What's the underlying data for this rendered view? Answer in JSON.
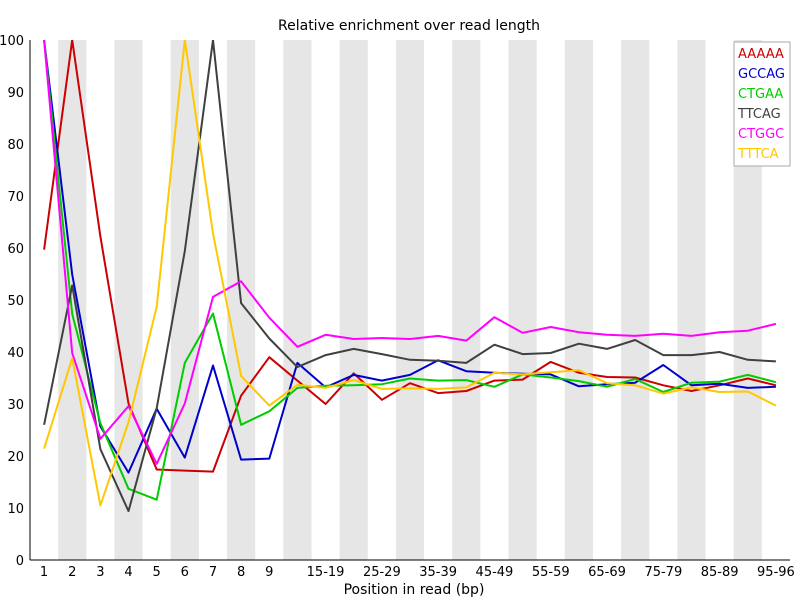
{
  "chart_data": {
    "type": "line",
    "title": "Relative enrichment over read length",
    "xlabel": "Position in read (bp)",
    "ylabel": "",
    "ylim": [
      0,
      100
    ],
    "yticks": [
      0,
      10,
      20,
      30,
      40,
      50,
      60,
      70,
      80,
      90,
      100
    ],
    "grid": "alternating vertical bands",
    "legend_position": "top-right",
    "categories": [
      "1",
      "2",
      "3",
      "4",
      "5",
      "6",
      "7",
      "8",
      "9",
      "10-14",
      "15-19",
      "20-24",
      "25-29",
      "30-34",
      "35-39",
      "40-44",
      "45-49",
      "50-54",
      "55-59",
      "60-64",
      "65-69",
      "70-74",
      "75-79",
      "80-84",
      "85-89",
      "90-94",
      "95-96"
    ],
    "tick_labels": [
      "1",
      "2",
      "3",
      "4",
      "5",
      "6",
      "7",
      "8",
      "9",
      "",
      "15-19",
      "",
      "25-29",
      "",
      "35-39",
      "",
      "45-49",
      "",
      "55-59",
      "",
      "65-69",
      "",
      "75-79",
      "",
      "85-89",
      "",
      "95-96"
    ],
    "series": [
      {
        "name": "AAAAA",
        "color": "#cc0000",
        "values": [
          59.7,
          100,
          62.2,
          30.1,
          17.4,
          17.2,
          17.0,
          31.6,
          39.0,
          34.5,
          30.0,
          35.9,
          30.8,
          34.0,
          32.1,
          32.5,
          34.5,
          34.7,
          38.1,
          36.0,
          35.2,
          35.1,
          33.6,
          32.5,
          33.6,
          34.9,
          33.6
        ]
      },
      {
        "name": "GCCAG",
        "color": "#0000cc",
        "values": [
          100,
          54.9,
          25.7,
          16.8,
          29.1,
          19.7,
          37.4,
          19.3,
          19.5,
          37.9,
          33.2,
          35.6,
          34.5,
          35.6,
          38.4,
          36.3,
          36.0,
          35.8,
          35.7,
          33.4,
          33.8,
          34.1,
          37.5,
          33.6,
          33.9,
          33.1,
          33.3
        ]
      },
      {
        "name": "CTGAA",
        "color": "#00cc00",
        "values": [
          100,
          47.3,
          26.3,
          13.7,
          11.6,
          37.9,
          47.4,
          26.0,
          28.6,
          33.1,
          33.5,
          33.6,
          33.8,
          34.9,
          34.5,
          34.6,
          33.3,
          35.7,
          35.1,
          34.4,
          33.3,
          34.8,
          32.3,
          34.1,
          34.3,
          35.6,
          34.2
        ]
      },
      {
        "name": "TTCAG",
        "color": "#404040",
        "values": [
          26.0,
          52.8,
          21.3,
          9.4,
          29.2,
          59.4,
          100,
          49.4,
          42.6,
          37.1,
          39.4,
          40.6,
          39.6,
          38.5,
          38.3,
          37.9,
          41.4,
          39.6,
          39.8,
          41.6,
          40.6,
          42.3,
          39.4,
          39.4,
          40.0,
          38.5,
          38.2
        ]
      },
      {
        "name": "CTGGC",
        "color": "#ff00ff",
        "values": [
          100,
          39.8,
          23.3,
          29.6,
          18.5,
          30.1,
          50.6,
          53.6,
          46.6,
          41.0,
          43.3,
          42.5,
          42.7,
          42.5,
          43.1,
          42.2,
          46.7,
          43.7,
          44.8,
          43.8,
          43.3,
          43.1,
          43.5,
          43.1,
          43.8,
          44.1,
          45.4
        ]
      },
      {
        "name": "TTTCA",
        "color": "#ffc800",
        "values": [
          21.4,
          38.8,
          10.5,
          26.5,
          48.7,
          100,
          62.8,
          35.4,
          29.7,
          33.7,
          33.1,
          34.6,
          32.9,
          33.0,
          32.9,
          33.2,
          36.0,
          35.7,
          36.1,
          36.5,
          34.0,
          33.6,
          32.0,
          33.2,
          32.3,
          32.4,
          29.7
        ]
      }
    ]
  }
}
